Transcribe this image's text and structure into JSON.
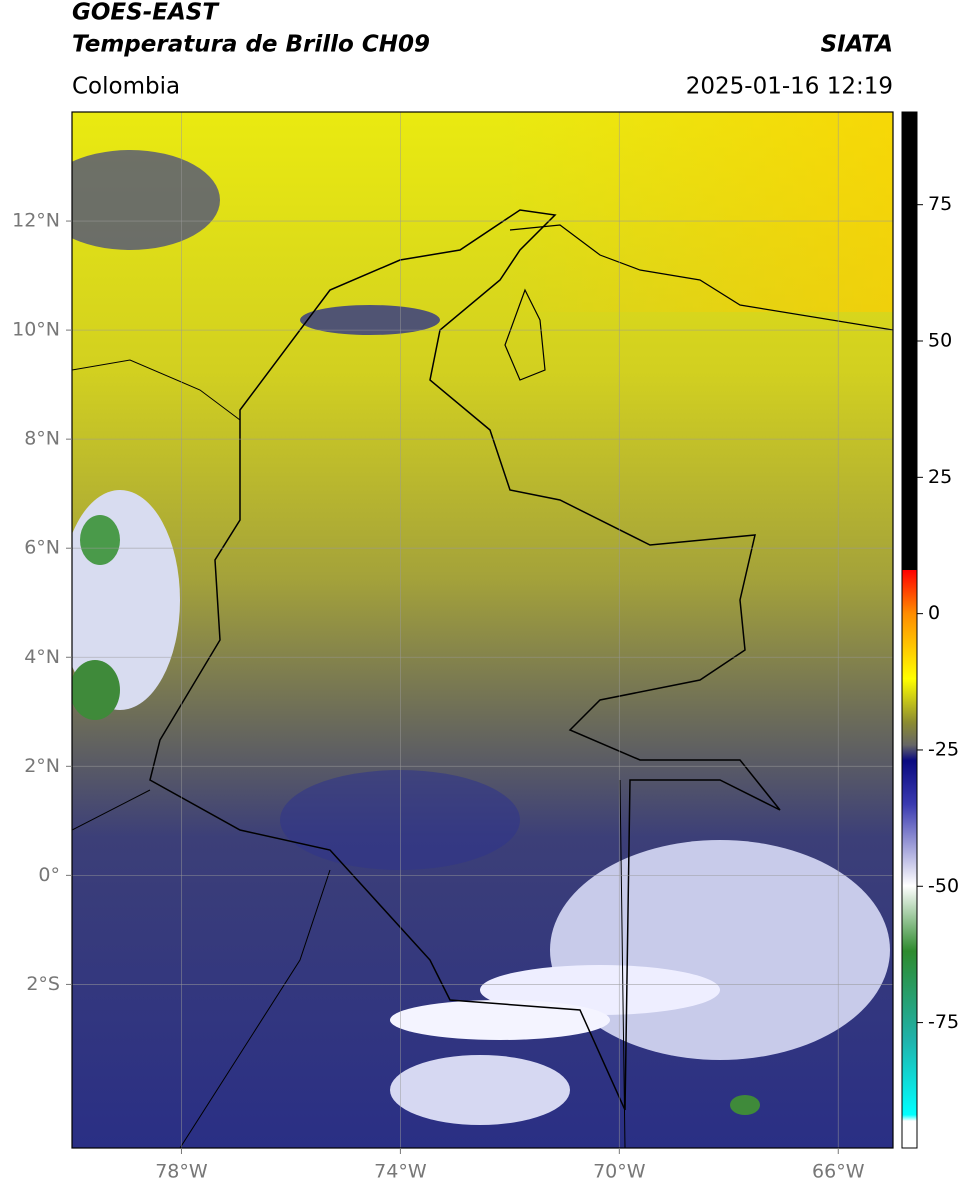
{
  "header": {
    "title": "GOES-EAST",
    "subtitle": "Temperatura de Brillo CH09",
    "source": "SIATA",
    "region": "Colombia",
    "datetime": "2025-01-16 12:19"
  },
  "map": {
    "xlim": [
      -80,
      -65
    ],
    "ylim": [
      -5,
      14
    ],
    "xticks": [
      {
        "value": -78,
        "label": "78°W"
      },
      {
        "value": -74,
        "label": "74°W"
      },
      {
        "value": -70,
        "label": "70°W"
      },
      {
        "value": -66,
        "label": "66°W"
      }
    ],
    "yticks": [
      {
        "value": -2,
        "label": "2°S"
      },
      {
        "value": 0,
        "label": "0°"
      },
      {
        "value": 2,
        "label": "2°N"
      },
      {
        "value": 4,
        "label": "4°N"
      },
      {
        "value": 6,
        "label": "6°N"
      },
      {
        "value": 8,
        "label": "8°N"
      },
      {
        "value": 10,
        "label": "10°N"
      },
      {
        "value": 12,
        "label": "12°N"
      }
    ]
  },
  "colorbar": {
    "lim": [
      -98,
      92
    ],
    "ticks": [
      75,
      50,
      25,
      0,
      -25,
      -50,
      -75
    ]
  }
}
